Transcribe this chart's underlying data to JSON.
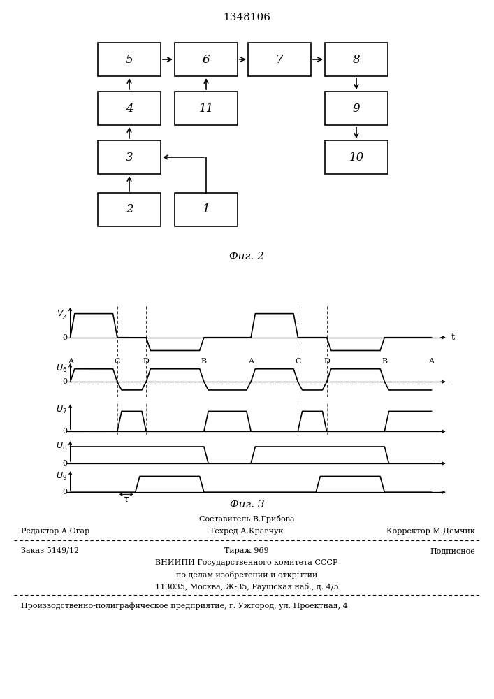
{
  "title": "1348106",
  "fig2_caption": "Фиг. 2",
  "fig3_caption": "Фиг. 3",
  "bg_color": "#ffffff",
  "line_color": "#000000",
  "footer_sestavitel": "Составитель В.Грибова",
  "footer_redaktor": "Редактор А.Огар",
  "footer_tekhred": "Техред А.Кравчук",
  "footer_korrektor": "Корректор М.Демчик",
  "footer_zakaz": "Заказ 5149/12",
  "footer_tirazh": "Тираж 969",
  "footer_podpisnoe": "Подписное",
  "footer_vniipи": "ВНИИПИ Государственного комитета СССР",
  "footer_po_delam": "по делам изобретений и открытий",
  "footer_addr": "113035, Москва, Ж-35, Раушская наб., д. 4/5",
  "footer_predpriyatie": "Производственно-полиграфическое предприятие, г. Ужгород, ул. Проектная, 4"
}
